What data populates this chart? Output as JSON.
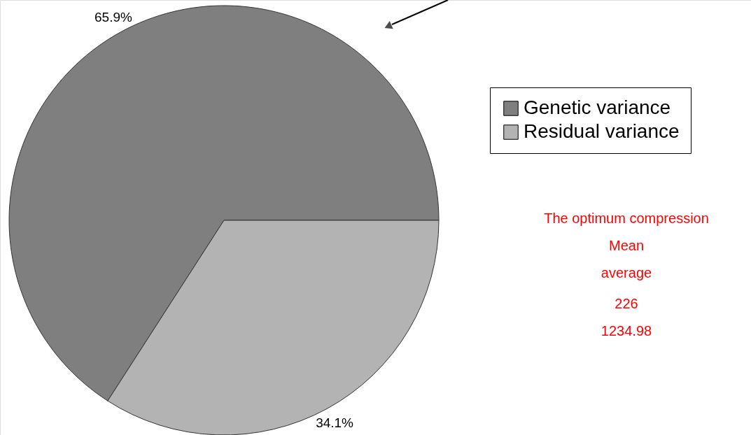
{
  "chart_data": {
    "type": "pie",
    "categories": [
      "Genetic variance",
      "Residual variance"
    ],
    "values": [
      65.9,
      34.1
    ],
    "colors": [
      "#7f7f7f",
      "#b3b3b3"
    ],
    "value_labels": [
      "65.9%",
      "34.1%"
    ],
    "legend": "right",
    "annotations": [
      "The optimum compression",
      "Mean",
      "average",
      "226",
      "1234.98"
    ]
  }
}
